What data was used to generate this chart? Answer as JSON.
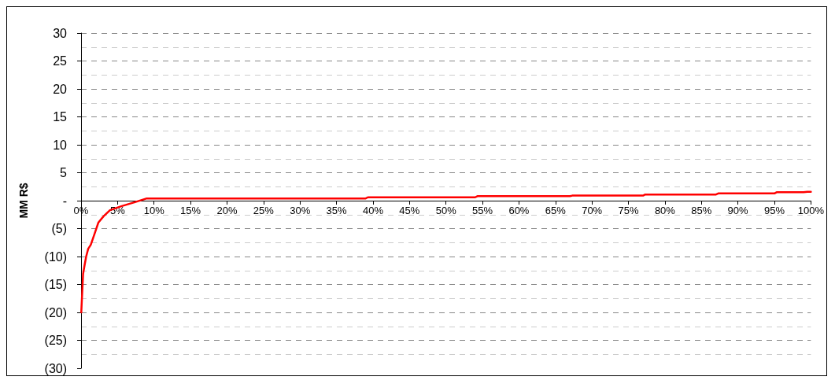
{
  "chart_data": {
    "type": "line",
    "ylabel": "MM R$",
    "x": [
      0.03,
      0.28,
      0.45,
      0.7,
      0.98,
      1.33,
      1.86,
      2.38,
      3.08,
      3.96,
      5.5,
      7.3,
      9.0,
      20,
      39,
      39.3,
      54,
      54.3,
      67,
      67.3,
      77,
      77.3,
      87,
      87.3,
      95,
      95.3,
      99,
      99.5,
      100
    ],
    "series": [
      {
        "color": "#ff0000",
        "values": [
          -20.0,
          -13.1,
          -11.8,
          -10.0,
          -8.6,
          -7.9,
          -5.9,
          -3.9,
          -2.8,
          -1.7,
          -1.0,
          -0.3,
          0.4,
          0.4,
          0.4,
          0.6,
          0.6,
          0.8,
          0.8,
          0.9,
          0.9,
          1.1,
          1.1,
          1.3,
          1.3,
          1.5,
          1.5,
          1.6,
          1.6
        ]
      }
    ],
    "xlim": [
      0,
      100
    ],
    "xticks": [
      {
        "value": 0,
        "label": "0%"
      },
      {
        "value": 5,
        "label": "5%"
      },
      {
        "value": 10,
        "label": "10%"
      },
      {
        "value": 15,
        "label": "15%"
      },
      {
        "value": 20,
        "label": "20%"
      },
      {
        "value": 25,
        "label": "25%"
      },
      {
        "value": 30,
        "label": "30%"
      },
      {
        "value": 35,
        "label": "35%"
      },
      {
        "value": 40,
        "label": "40%"
      },
      {
        "value": 45,
        "label": "45%"
      },
      {
        "value": 50,
        "label": "50%"
      },
      {
        "value": 55,
        "label": "55%"
      },
      {
        "value": 60,
        "label": "60%"
      },
      {
        "value": 65,
        "label": "65%"
      },
      {
        "value": 70,
        "label": "70%"
      },
      {
        "value": 75,
        "label": "75%"
      },
      {
        "value": 80,
        "label": "80%"
      },
      {
        "value": 85,
        "label": "85%"
      },
      {
        "value": 90,
        "label": "90%"
      },
      {
        "value": 95,
        "label": "95%"
      },
      {
        "value": 100,
        "label": "100%"
      }
    ],
    "ylim": [
      -30,
      30
    ],
    "yticks": [
      {
        "value": -30,
        "label": "(30)"
      },
      {
        "value": -25,
        "label": "(25)"
      },
      {
        "value": -20,
        "label": "(20)"
      },
      {
        "value": -15,
        "label": "(15)"
      },
      {
        "value": -10,
        "label": "(10)"
      },
      {
        "value": -5,
        "label": "(5)"
      },
      {
        "value": 0,
        "label": "-"
      },
      5,
      10,
      15,
      20,
      25,
      30
    ],
    "grid": "y",
    "marker": "none",
    "line_style": "solid"
  }
}
